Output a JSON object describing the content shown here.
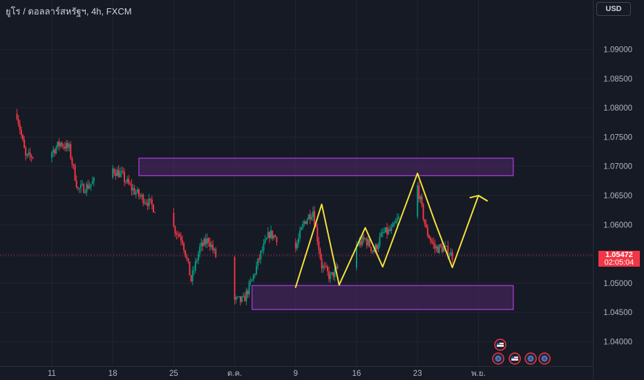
{
  "header": {
    "symbol_label": "ยูโร / ดอลลาร์สหรัฐฯ, 4h, FXCM",
    "currency_button": "USD"
  },
  "price_marker": {
    "price": "1.05472",
    "countdown": "02:05:04",
    "color": "#f23645"
  },
  "colors": {
    "background": "#161a25",
    "grid": "#212531",
    "up_candle": "#089981",
    "down_candle": "#f23645",
    "zone_fill": "#5b2a78",
    "zone_border": "#b23ee0",
    "projection": "#f5e33b",
    "axis_text": "#b2b5be"
  },
  "event_icons": [
    "us-flag-icon",
    "eu-flag-icon",
    "us-flag-icon",
    "eu-flag-icon",
    "eu-flag-icon"
  ],
  "chart_data": {
    "type": "candlestick",
    "symbol": "EURUSD",
    "timeframe": "4h",
    "ylim": [
      1.0358,
      1.0948
    ],
    "y_ticks": [
      "1.09000",
      "1.08500",
      "1.08000",
      "1.07500",
      "1.07000",
      "1.06500",
      "1.06000",
      "1.05500",
      "1.05000",
      "1.04500",
      "1.04000"
    ],
    "x_ticks": [
      "11",
      "18",
      "25",
      "ต.ค.",
      "9",
      "16",
      "23",
      "พ.ย."
    ],
    "x_tick_dates": [
      "2023-09-11",
      "2023-09-18",
      "2023-09-25",
      "2023-10-02",
      "2023-10-09",
      "2023-10-16",
      "2023-10-23",
      "2023-10-30"
    ],
    "price_path": [
      [
        "2023-09-07",
        1.079
      ],
      [
        "2023-09-08",
        1.0715
      ],
      [
        "2023-09-11",
        1.0725
      ],
      [
        "2023-09-12",
        1.074
      ],
      [
        "2023-09-13",
        1.073
      ],
      [
        "2023-09-14",
        1.066
      ],
      [
        "2023-09-15",
        1.0665
      ],
      [
        "2023-09-18",
        1.0695
      ],
      [
        "2023-09-19",
        1.0685
      ],
      [
        "2023-09-20",
        1.0665
      ],
      [
        "2023-09-21",
        1.065
      ],
      [
        "2023-09-22",
        1.064
      ],
      [
        "2023-09-25",
        1.0595
      ],
      [
        "2023-09-26",
        1.0575
      ],
      [
        "2023-09-27",
        1.0505
      ],
      [
        "2023-09-28",
        1.056
      ],
      [
        "2023-09-29",
        1.0575
      ],
      [
        "2023-10-02",
        1.047
      ],
      [
        "2023-10-03",
        1.047
      ],
      [
        "2023-10-04",
        1.0505
      ],
      [
        "2023-10-05",
        1.055
      ],
      [
        "2023-10-06",
        1.0585
      ],
      [
        "2023-10-09",
        1.056
      ],
      [
        "2023-10-10",
        1.0605
      ],
      [
        "2023-10-11",
        1.0625
      ],
      [
        "2023-10-12",
        1.053
      ],
      [
        "2023-10-13",
        1.051
      ],
      [
        "2023-10-16",
        1.0565
      ],
      [
        "2023-10-17",
        1.0575
      ],
      [
        "2023-10-18",
        1.0555
      ],
      [
        "2023-10-19",
        1.0585
      ],
      [
        "2023-10-20",
        1.059
      ],
      [
        "2023-10-23",
        1.0665
      ],
      [
        "2023-10-24",
        1.059
      ],
      [
        "2023-10-25",
        1.056
      ],
      [
        "2023-10-26",
        1.056
      ],
      [
        "2023-10-27",
        1.0547
      ]
    ],
    "zones": [
      {
        "from": "2023-09-21",
        "to": "2023-11-03",
        "top": 1.0714,
        "bottom": 1.0684
      },
      {
        "from": "2023-10-04",
        "to": "2023-11-03",
        "top": 1.0496,
        "bottom": 1.0455
      }
    ],
    "projection": [
      [
        "2023-10-09",
        1.0493
      ],
      [
        "2023-10-12",
        1.0635
      ],
      [
        "2023-10-14",
        1.0497
      ],
      [
        "2023-10-17",
        1.0595
      ],
      [
        "2023-10-19",
        1.0528
      ],
      [
        "2023-10-23",
        1.0688
      ],
      [
        "2023-10-25",
        1.0605
      ],
      [
        "2023-10-27",
        1.0527
      ],
      [
        "2023-10-30",
        1.065
      ],
      [
        "2023-10-31",
        1.0641
      ]
    ],
    "last_price": 1.05472,
    "grid": true
  }
}
